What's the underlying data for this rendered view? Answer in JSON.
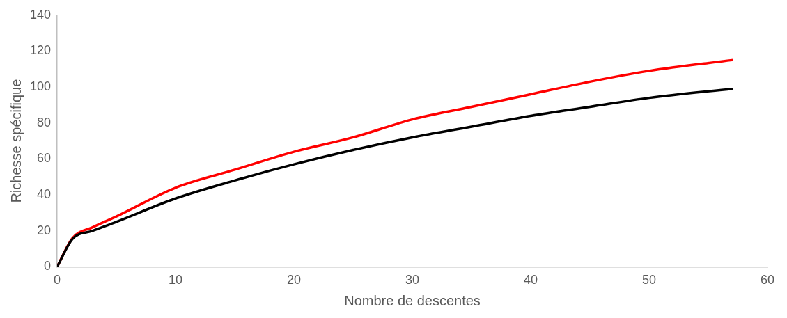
{
  "chart_data": {
    "type": "line",
    "xlabel": "Nombre de descentes",
    "ylabel": "Richesse spécifique",
    "x": [
      0,
      1.3,
      3,
      5,
      10,
      15,
      20,
      25,
      30,
      35,
      40,
      45,
      50,
      57
    ],
    "series": [
      {
        "color": "#000000",
        "values": [
          0,
          15.5,
          20,
          25,
          38,
          48,
          57,
          65,
          72,
          78,
          84,
          89,
          94,
          99
        ]
      },
      {
        "color": "#ff0000",
        "values": [
          0,
          16,
          22,
          28,
          44,
          54,
          64,
          72,
          82,
          89,
          96,
          103,
          109,
          115
        ]
      }
    ],
    "xlim": [
      0,
      60
    ],
    "xticks": [
      0,
      10,
      20,
      30,
      40,
      50,
      60
    ],
    "ylim": [
      0,
      140
    ],
    "yticks": [
      0,
      20,
      40,
      60,
      80,
      100,
      120,
      140
    ],
    "grid": false,
    "legend": false,
    "marker": "none",
    "line_style": "solid"
  }
}
